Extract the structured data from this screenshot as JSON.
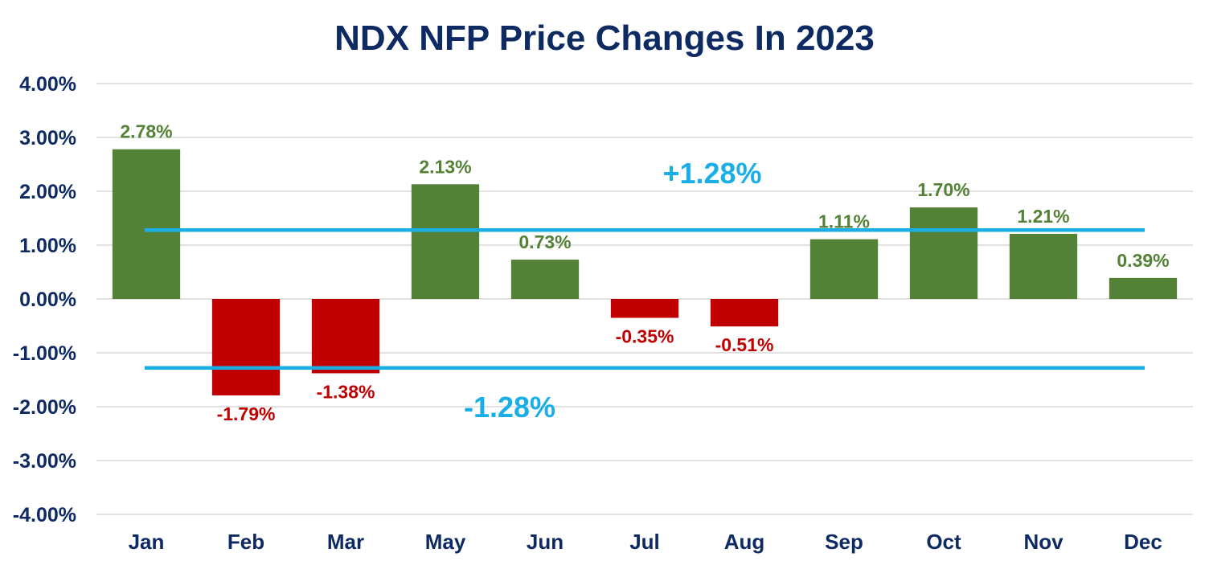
{
  "chart_data": {
    "type": "bar",
    "title": "NDX NFP Price Changes In 2023",
    "categories": [
      "Jan",
      "Feb",
      "Mar",
      "May",
      "Jun",
      "Jul",
      "Aug",
      "Sep",
      "Oct",
      "Nov",
      "Dec"
    ],
    "values": [
      2.78,
      -1.79,
      -1.38,
      2.13,
      0.73,
      -0.35,
      -0.51,
      1.11,
      1.7,
      1.21,
      0.39
    ],
    "data_labels": [
      "2.78%",
      "-1.79%",
      "-1.38%",
      "2.13%",
      "0.73%",
      "-0.35%",
      "-0.51%",
      "1.11%",
      "1.70%",
      "1.21%",
      "0.39%"
    ],
    "ylim": [
      -4,
      4
    ],
    "yticks": [
      4,
      3,
      2,
      1,
      0,
      -1,
      -2,
      -3,
      -4
    ],
    "ytick_labels": [
      "4.00%",
      "3.00%",
      "2.00%",
      "1.00%",
      "0.00%",
      "-1.00%",
      "-2.00%",
      "-3.00%",
      "-4.00%"
    ],
    "xlabel": "",
    "ylabel": "",
    "grid": true,
    "reference_lines": [
      {
        "value": 1.28,
        "label": "+1.28%"
      },
      {
        "value": -1.28,
        "label": "-1.28%"
      }
    ],
    "colors": {
      "positive": "#538135",
      "negative": "#c00000",
      "reference": "#1aaee6",
      "title": "#0d2a63",
      "axis_text": "#0d2a63",
      "grid": "#d9d9d9"
    }
  }
}
